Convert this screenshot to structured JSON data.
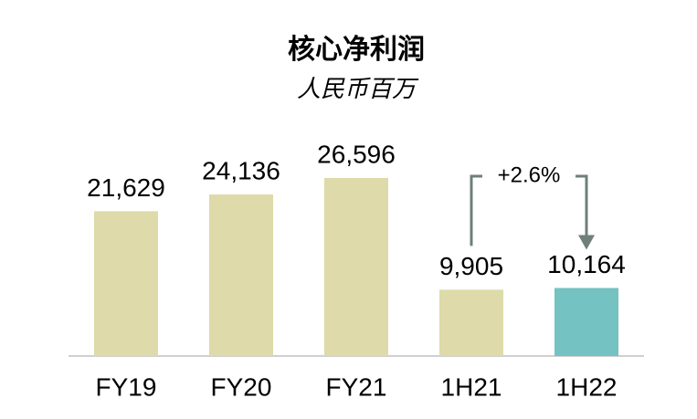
{
  "chart_data": {
    "type": "bar",
    "title": "核心净利润",
    "subtitle": "人民币百万",
    "categories": [
      "FY19",
      "FY20",
      "FY21",
      "1H21",
      "1H22"
    ],
    "values": [
      21629,
      24136,
      26596,
      9905,
      10164
    ],
    "value_labels": [
      "21,629",
      "24,136",
      "26,596",
      "9,905",
      "10,164"
    ],
    "colors": [
      "#dedaa9",
      "#dedaa9",
      "#dedaa9",
      "#dedaa9",
      "#74c2c1"
    ],
    "annotation": "+2.6%"
  }
}
